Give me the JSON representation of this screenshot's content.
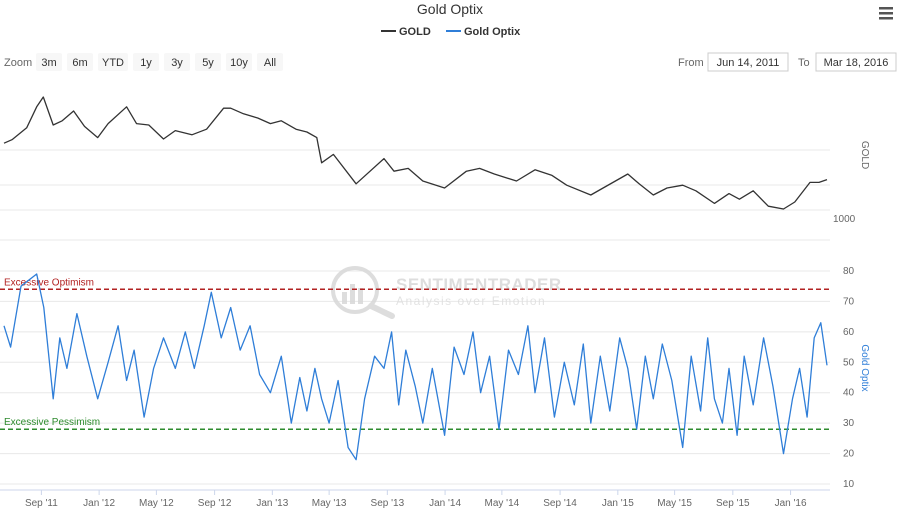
{
  "chart_data": {
    "type": "line",
    "title": "Gold Optix",
    "legend": [
      "GOLD",
      "Gold Optix"
    ],
    "series": [
      {
        "name": "GOLD",
        "color": "#333333",
        "x": [
          "2011-06-14",
          "2011-07-01",
          "2011-08-01",
          "2011-08-22",
          "2011-09-05",
          "2011-09-26",
          "2011-10-15",
          "2011-11-08",
          "2011-12-01",
          "2011-12-29",
          "2012-01-20",
          "2012-02-28",
          "2012-03-20",
          "2012-04-15",
          "2012-05-16",
          "2012-06-10",
          "2012-07-15",
          "2012-08-15",
          "2012-09-20",
          "2012-10-05",
          "2012-11-01",
          "2012-12-01",
          "2012-12-28",
          "2013-01-20",
          "2013-02-20",
          "2013-03-15",
          "2013-04-05",
          "2013-04-15",
          "2013-05-10",
          "2013-06-27",
          "2013-08-25",
          "2013-09-15",
          "2013-10-15",
          "2013-11-15",
          "2013-12-31",
          "2014-02-15",
          "2014-03-15",
          "2014-04-15",
          "2014-06-01",
          "2014-07-10",
          "2014-08-15",
          "2014-09-15",
          "2014-11-05",
          "2014-12-01",
          "2015-01-22",
          "2015-02-15",
          "2015-03-17",
          "2015-04-15",
          "2015-05-18",
          "2015-06-15",
          "2015-07-24",
          "2015-08-24",
          "2015-09-15",
          "2015-10-14",
          "2015-11-15",
          "2015-12-17",
          "2016-01-10",
          "2016-02-11",
          "2016-03-01",
          "2016-03-18"
        ],
        "values": [
          1520,
          1545,
          1630,
          1780,
          1850,
          1650,
          1680,
          1750,
          1640,
          1560,
          1660,
          1780,
          1660,
          1650,
          1550,
          1610,
          1580,
          1620,
          1770,
          1770,
          1730,
          1700,
          1660,
          1680,
          1620,
          1600,
          1560,
          1380,
          1440,
          1230,
          1410,
          1320,
          1340,
          1250,
          1200,
          1320,
          1340,
          1300,
          1250,
          1330,
          1290,
          1220,
          1150,
          1200,
          1300,
          1230,
          1150,
          1200,
          1220,
          1180,
          1090,
          1160,
          1120,
          1180,
          1070,
          1050,
          1100,
          1240,
          1240,
          1260
        ]
      },
      {
        "name": "Gold Optix",
        "color": "#2f7ed8",
        "x": [
          "2011-06-14",
          "2011-06-28",
          "2011-07-20",
          "2011-08-22",
          "2011-09-06",
          "2011-09-26",
          "2011-10-10",
          "2011-10-25",
          "2011-11-15",
          "2011-12-06",
          "2011-12-29",
          "2012-01-20",
          "2012-02-10",
          "2012-02-28",
          "2012-03-15",
          "2012-04-05",
          "2012-04-25",
          "2012-05-16",
          "2012-06-10",
          "2012-07-01",
          "2012-07-20",
          "2012-08-10",
          "2012-08-25",
          "2012-09-15",
          "2012-10-05",
          "2012-10-25",
          "2012-11-15",
          "2012-12-05",
          "2012-12-28",
          "2013-01-20",
          "2013-02-10",
          "2013-02-28",
          "2013-03-15",
          "2013-04-01",
          "2013-04-15",
          "2013-05-01",
          "2013-05-20",
          "2013-06-10",
          "2013-06-27",
          "2013-07-15",
          "2013-08-05",
          "2013-08-25",
          "2013-09-10",
          "2013-09-25",
          "2013-10-10",
          "2013-10-30",
          "2013-11-15",
          "2013-12-05",
          "2013-12-31",
          "2014-01-20",
          "2014-02-10",
          "2014-03-01",
          "2014-03-17",
          "2014-04-05",
          "2014-04-25",
          "2014-05-15",
          "2014-06-05",
          "2014-06-25",
          "2014-07-10",
          "2014-07-30",
          "2014-08-20",
          "2014-09-10",
          "2014-10-01",
          "2014-10-20",
          "2014-11-05",
          "2014-11-25",
          "2014-12-15",
          "2015-01-05",
          "2015-01-22",
          "2015-02-10",
          "2015-02-28",
          "2015-03-17",
          "2015-04-05",
          "2015-04-25",
          "2015-05-18",
          "2015-06-05",
          "2015-06-25",
          "2015-07-10",
          "2015-07-24",
          "2015-08-10",
          "2015-08-24",
          "2015-09-10",
          "2015-09-25",
          "2015-10-14",
          "2015-11-05",
          "2015-11-25",
          "2015-12-17",
          "2016-01-05",
          "2016-01-20",
          "2016-02-05",
          "2016-02-20",
          "2016-03-05",
          "2016-03-18"
        ],
        "values": [
          62,
          55,
          75,
          79,
          68,
          38,
          58,
          48,
          66,
          52,
          38,
          50,
          62,
          44,
          54,
          32,
          48,
          58,
          48,
          60,
          48,
          62,
          73,
          58,
          68,
          54,
          62,
          46,
          40,
          52,
          30,
          45,
          34,
          48,
          38,
          30,
          44,
          22,
          18,
          38,
          52,
          48,
          60,
          36,
          54,
          42,
          30,
          48,
          26,
          55,
          46,
          60,
          40,
          52,
          28,
          54,
          46,
          62,
          40,
          58,
          32,
          50,
          36,
          56,
          30,
          52,
          34,
          58,
          48,
          28,
          52,
          38,
          56,
          44,
          22,
          52,
          34,
          58,
          38,
          30,
          48,
          26,
          52,
          36,
          58,
          42,
          20,
          38,
          48,
          32,
          58,
          63,
          49
        ]
      }
    ],
    "bands": [
      {
        "label": "Excessive Optimism",
        "value": 74,
        "color": "#b22222"
      },
      {
        "label": "Excessive Pessimism",
        "value": 28,
        "color": "#2e8b2e"
      }
    ],
    "xlim": [
      "2011-06-14",
      "2016-03-18"
    ],
    "x_ticks": [
      {
        "date": "2011-09-01",
        "label": "Sep '11"
      },
      {
        "date": "2012-01-01",
        "label": "Jan '12"
      },
      {
        "date": "2012-05-01",
        "label": "May '12"
      },
      {
        "date": "2012-09-01",
        "label": "Sep '12"
      },
      {
        "date": "2013-01-01",
        "label": "Jan '13"
      },
      {
        "date": "2013-05-01",
        "label": "May '13"
      },
      {
        "date": "2013-09-01",
        "label": "Sep '13"
      },
      {
        "date": "2014-01-01",
        "label": "Jan '14"
      },
      {
        "date": "2014-05-01",
        "label": "May '14"
      },
      {
        "date": "2014-09-01",
        "label": "Sep '14"
      },
      {
        "date": "2015-01-01",
        "label": "Jan '15"
      },
      {
        "date": "2015-05-01",
        "label": "May '15"
      },
      {
        "date": "2015-09-01",
        "label": "Sep '15"
      },
      {
        "date": "2016-01-01",
        "label": "Jan '16"
      }
    ],
    "gold_axis": {
      "label": "GOLD",
      "ticks": [
        1000
      ],
      "ylim": [
        900,
        1900
      ]
    },
    "optix_axis": {
      "label": "Gold Optix",
      "ticks": [
        10,
        20,
        30,
        40,
        50,
        60,
        70,
        80
      ],
      "ylim": [
        10,
        80
      ]
    },
    "grid": true
  },
  "toolbar": {
    "zoom_label": "Zoom",
    "zoom_buttons": [
      "3m",
      "6m",
      "YTD",
      "1y",
      "3y",
      "5y",
      "10y",
      "All"
    ],
    "from_label": "From",
    "from_value": "Jun 14, 2011",
    "to_label": "To",
    "to_value": "Mar 18, 2016",
    "menu_icon": "hamburger-menu-icon"
  },
  "watermark": {
    "name": "SENTIMENTRADER",
    "tagline": "Analysis over Emotion"
  }
}
